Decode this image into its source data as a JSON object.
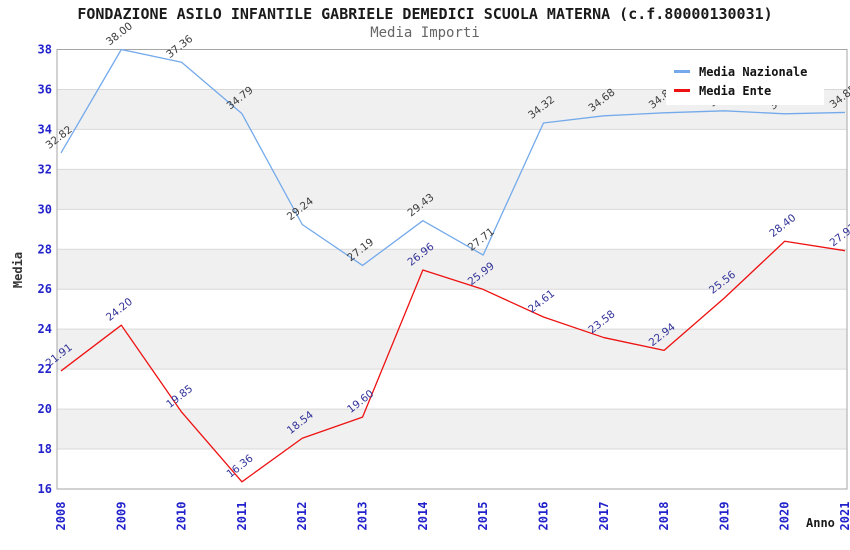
{
  "page": {
    "title": "FONDAZIONE ASILO INFANTILE GABRIELE DEMEDICI SCUOLA MATERNA (c.f.80000130031)",
    "subtitle": "Media Importi"
  },
  "chart_data": {
    "type": "line",
    "title": "FONDAZIONE ASILO INFANTILE GABRIELE DEMEDICI SCUOLA MATERNA (c.f.80000130031)",
    "subtitle": "Media Importi",
    "xlabel": "Anno",
    "ylabel": "Media",
    "categories": [
      "2008",
      "2009",
      "2010",
      "2011",
      "2012",
      "2013",
      "2014",
      "2015",
      "2016",
      "2017",
      "2018",
      "2019",
      "2020",
      "2021"
    ],
    "ylim": [
      16,
      38
    ],
    "ytick_step": 2,
    "yticks": [
      16,
      18,
      20,
      22,
      24,
      26,
      28,
      30,
      32,
      34,
      36,
      38
    ],
    "grid": "horizontal",
    "legend_position": "top-right",
    "labels_hidden_by_legend": [
      "2019",
      "2020"
    ],
    "series": [
      {
        "name": "Media Nazionale",
        "color": "#74aaeb",
        "label_color": "#3d3d3d",
        "values": [
          32.82,
          38.0,
          37.36,
          34.79,
          29.24,
          27.19,
          29.43,
          27.71,
          34.32,
          34.68,
          34.83,
          34.93,
          34.78,
          34.85
        ]
      },
      {
        "name": "Media Ente",
        "color": "#ee1111",
        "label_color": "#333399",
        "values": [
          21.91,
          24.2,
          19.85,
          16.36,
          18.54,
          19.6,
          26.96,
          25.99,
          24.61,
          23.58,
          22.94,
          25.56,
          28.4,
          27.93
        ]
      }
    ],
    "colors": {
      "tick_label": "#2222cc",
      "grid_line": "#d9d9d9",
      "frame": "#a6a6a6",
      "band": "#f0f0f0",
      "background": "#ffffff"
    }
  }
}
